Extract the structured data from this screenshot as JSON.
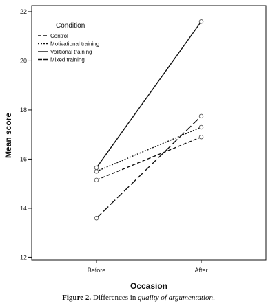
{
  "chart_data": {
    "type": "line",
    "categories": [
      "Before",
      "After"
    ],
    "series": [
      {
        "name": "Control",
        "values": [
          15.15,
          16.9
        ],
        "dash": "5,3"
      },
      {
        "name": "Motivational training",
        "values": [
          15.5,
          17.3
        ],
        "dash": "2,2"
      },
      {
        "name": "Volitional training",
        "values": [
          15.65,
          21.6
        ],
        "dash": ""
      },
      {
        "name": "Mixed training",
        "values": [
          13.6,
          17.75
        ],
        "dash": "10,4"
      }
    ],
    "xlabel": "Occasion",
    "ylabel": "Mean score",
    "ylim": [
      11.9,
      22.25
    ],
    "yticks": [
      "12",
      "14",
      "16",
      "18",
      "20",
      "22"
    ],
    "legend_title": "Condition",
    "legend_position": "top-left",
    "grid": false
  },
  "caption": {
    "figure_label": "Figure 2.",
    "text_before": " Differences in ",
    "italic": "quality of argumentation",
    "text_after": "."
  }
}
